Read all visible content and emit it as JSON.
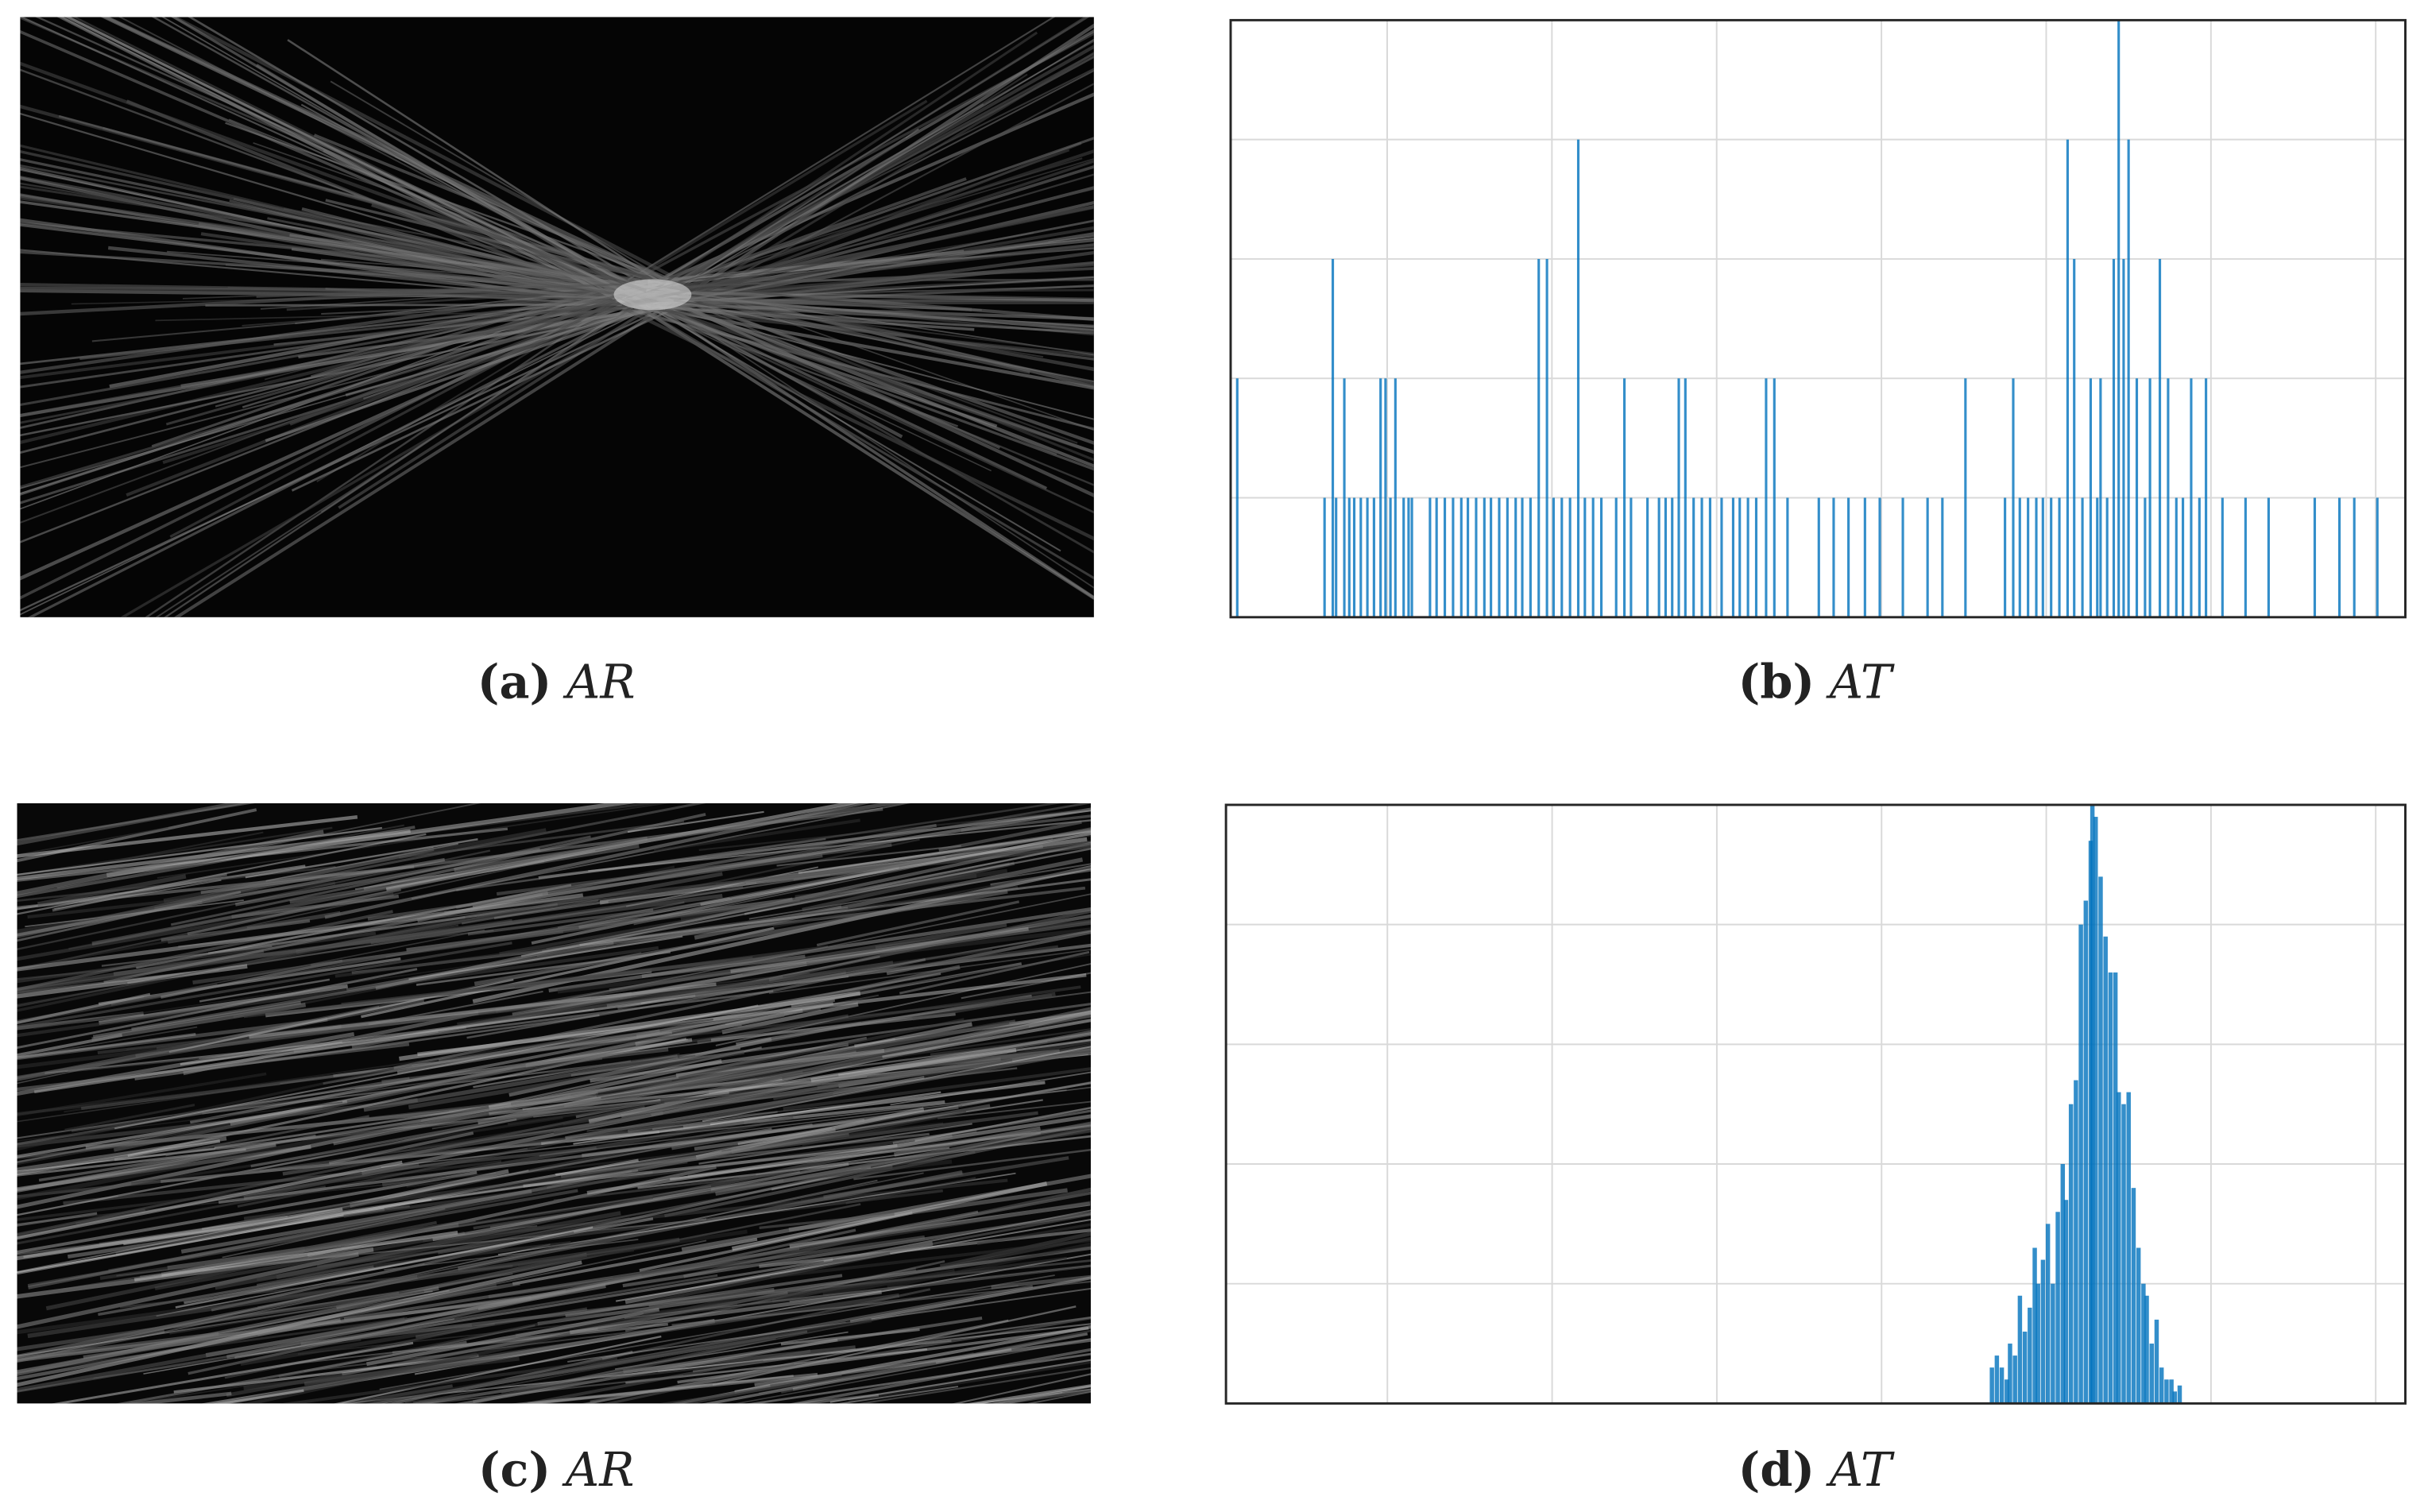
{
  "captions": [
    {
      "tag": "(a)",
      "text": "AR"
    },
    {
      "tag": "(b)",
      "text": "AT"
    },
    {
      "tag": "(c)",
      "text": "AR"
    },
    {
      "tag": "(d)",
      "text": "AT"
    }
  ],
  "chart_data": [
    {
      "type": "bar",
      "color": "#0072bd",
      "grid": true,
      "xlim": [
        0,
        7.13
      ],
      "xticks": [
        0.95,
        1.95,
        2.95,
        3.95,
        4.95,
        5.95,
        6.95
      ],
      "ylim": [
        0,
        5
      ],
      "yticks": [
        0,
        1,
        2,
        3,
        4,
        5
      ],
      "x": [
        0.04,
        0.57,
        0.62,
        0.64,
        0.69,
        0.72,
        0.75,
        0.79,
        0.83,
        0.87,
        0.91,
        0.94,
        0.97,
        1.0,
        1.05,
        1.08,
        1.1,
        1.21,
        1.25,
        1.3,
        1.35,
        1.4,
        1.44,
        1.49,
        1.54,
        1.58,
        1.63,
        1.68,
        1.73,
        1.77,
        1.82,
        1.87,
        1.92,
        1.96,
        2.01,
        2.06,
        2.11,
        2.15,
        2.2,
        2.25,
        2.34,
        2.39,
        2.43,
        2.53,
        2.6,
        2.64,
        2.68,
        2.72,
        2.76,
        2.81,
        2.86,
        2.91,
        2.98,
        3.05,
        3.09,
        3.14,
        3.19,
        3.25,
        3.3,
        3.38,
        3.57,
        3.66,
        3.75,
        3.85,
        3.94,
        4.08,
        4.23,
        4.32,
        4.46,
        4.7,
        4.75,
        4.79,
        4.84,
        4.89,
        4.93,
        4.98,
        5.03,
        5.08,
        5.12,
        5.17,
        5.22,
        5.26,
        5.28,
        5.32,
        5.36,
        5.39,
        5.42,
        5.45,
        5.5,
        5.55,
        5.58,
        5.64,
        5.69,
        5.74,
        5.78,
        5.83,
        5.88,
        5.92,
        6.02,
        6.16,
        6.3,
        6.58,
        6.73,
        6.82,
        6.96
      ],
      "values": [
        2,
        1,
        3,
        1,
        2,
        1,
        1,
        1,
        1,
        1,
        2,
        2,
        1,
        2,
        1,
        1,
        1,
        1,
        1,
        1,
        1,
        1,
        1,
        1,
        1,
        1,
        1,
        1,
        1,
        1,
        1,
        3,
        3,
        1,
        1,
        1,
        4,
        1,
        1,
        1,
        1,
        2,
        1,
        1,
        1,
        1,
        1,
        2,
        2,
        1,
        1,
        1,
        1,
        1,
        1,
        1,
        1,
        2,
        2,
        1,
        1,
        1,
        1,
        1,
        1,
        1,
        1,
        1,
        2,
        1,
        2,
        1,
        1,
        1,
        1,
        1,
        1,
        4,
        3,
        1,
        2,
        1,
        2,
        1,
        3,
        5,
        3,
        4,
        2,
        1,
        2,
        3,
        2,
        1,
        1,
        2,
        1,
        2,
        1,
        1,
        1,
        1,
        1,
        1,
        1
      ]
    },
    {
      "type": "bar",
      "color": "#0072bd",
      "grid": true,
      "xlim": [
        0,
        7.16
      ],
      "xticks": [
        0.98,
        1.98,
        2.98,
        3.98,
        4.98,
        5.98,
        6.98
      ],
      "ylim": [
        0,
        5
      ],
      "yticks": [
        0,
        1,
        2,
        3,
        4,
        5
      ],
      "x": [
        4.65,
        4.68,
        4.71,
        4.74,
        4.76,
        4.79,
        4.82,
        4.85,
        4.88,
        4.91,
        4.93,
        4.96,
        4.99,
        5.02,
        5.05,
        5.08,
        5.1,
        5.13,
        5.16,
        5.19,
        5.22,
        5.25,
        5.26,
        5.28,
        5.31,
        5.34,
        5.37,
        5.4,
        5.42,
        5.45,
        5.48,
        5.51,
        5.54,
        5.57,
        5.59,
        5.62,
        5.65,
        5.68,
        5.71,
        5.74,
        5.76,
        5.79
      ],
      "values": [
        0.3,
        0.4,
        0.3,
        0.2,
        0.5,
        0.4,
        0.9,
        0.6,
        0.8,
        1.3,
        1.0,
        1.2,
        1.5,
        1.0,
        1.6,
        2.0,
        1.7,
        2.5,
        2.7,
        4.0,
        4.2,
        4.7,
        5.0,
        4.9,
        4.4,
        3.9,
        3.6,
        3.6,
        2.6,
        2.5,
        2.6,
        1.8,
        1.3,
        1.0,
        0.9,
        0.5,
        0.7,
        0.3,
        0.2,
        0.2,
        0.1,
        0.15
      ]
    }
  ]
}
